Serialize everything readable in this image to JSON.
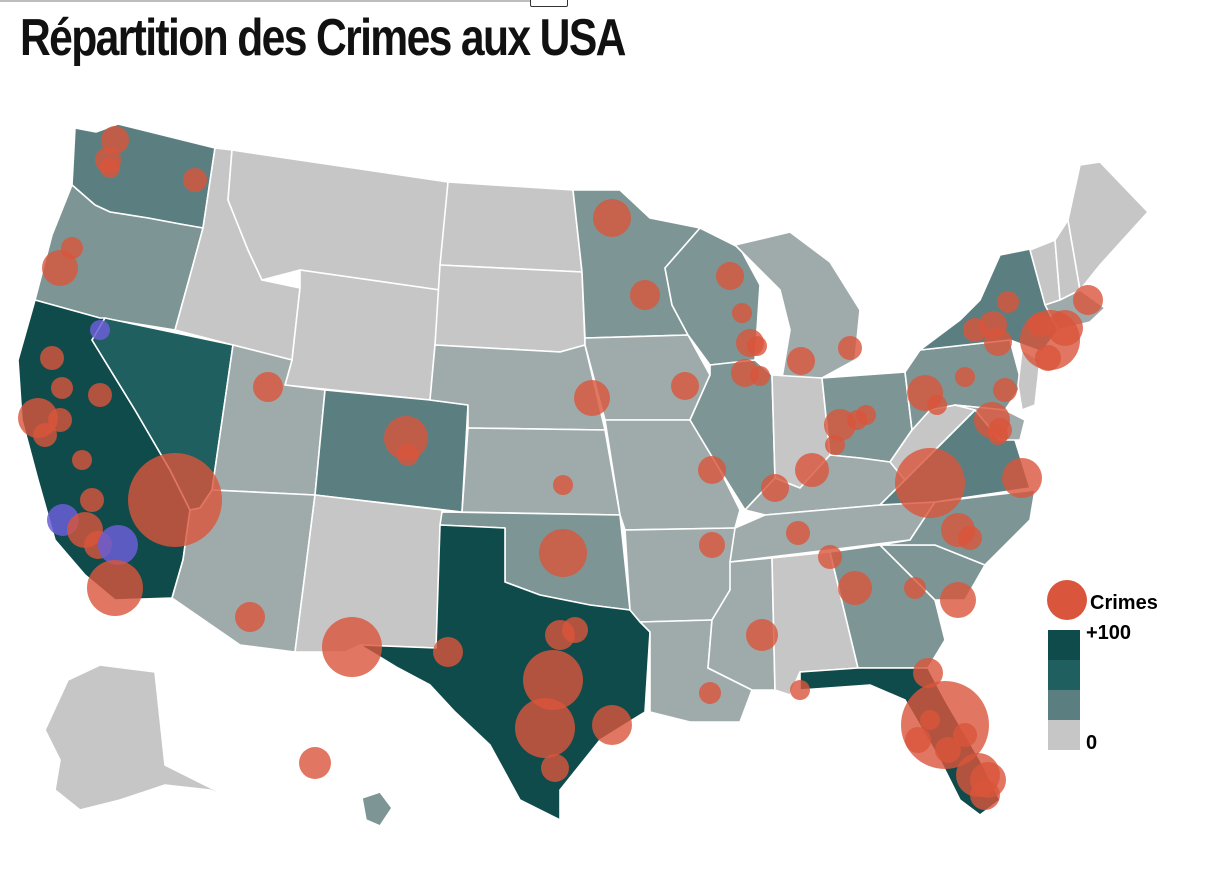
{
  "title": "Répartition des Crimes aux USA",
  "colors": {
    "level0": "#c6c6c6",
    "level1": "#9fabab",
    "level2": "#7e9595",
    "level3": "#5b7f80",
    "level4": "#205f60",
    "level5": "#0f4b4a",
    "bubble": "#d9553b",
    "bubble_alt": "#6a5ed6"
  },
  "legend": {
    "bubble_label": "Crimes",
    "scale_max_label": "+100",
    "scale_min_label": "0",
    "scale_colors": [
      "#0f4b4a",
      "#205f60",
      "#5b7f80",
      "#c6c6c6"
    ]
  },
  "states": [
    {
      "name": "washington",
      "level": 3
    },
    {
      "name": "oregon",
      "level": 2
    },
    {
      "name": "california",
      "level": 5
    },
    {
      "name": "nevada",
      "level": 4
    },
    {
      "name": "idaho",
      "level": 0
    },
    {
      "name": "montana",
      "level": 0
    },
    {
      "name": "wyoming",
      "level": 0
    },
    {
      "name": "utah",
      "level": 1
    },
    {
      "name": "arizona",
      "level": 1
    },
    {
      "name": "colorado",
      "level": 3
    },
    {
      "name": "new-mexico",
      "level": 0
    },
    {
      "name": "north-dakota",
      "level": 0
    },
    {
      "name": "south-dakota",
      "level": 0
    },
    {
      "name": "nebraska",
      "level": 1
    },
    {
      "name": "kansas",
      "level": 1
    },
    {
      "name": "oklahoma",
      "level": 2
    },
    {
      "name": "texas",
      "level": 5
    },
    {
      "name": "minnesota",
      "level": 2
    },
    {
      "name": "iowa",
      "level": 1
    },
    {
      "name": "missouri",
      "level": 1
    },
    {
      "name": "arkansas",
      "level": 1
    },
    {
      "name": "louisiana",
      "level": 1
    },
    {
      "name": "wisconsin",
      "level": 2
    },
    {
      "name": "illinois",
      "level": 2
    },
    {
      "name": "michigan",
      "level": 1
    },
    {
      "name": "indiana",
      "level": 0
    },
    {
      "name": "ohio",
      "level": 2
    },
    {
      "name": "kentucky",
      "level": 1
    },
    {
      "name": "tennessee",
      "level": 1
    },
    {
      "name": "mississippi",
      "level": 1
    },
    {
      "name": "alabama",
      "level": 0
    },
    {
      "name": "georgia",
      "level": 2
    },
    {
      "name": "florida",
      "level": 5
    },
    {
      "name": "south-carolina",
      "level": 2
    },
    {
      "name": "north-carolina",
      "level": 2
    },
    {
      "name": "virginia",
      "level": 3
    },
    {
      "name": "west-virginia",
      "level": 0
    },
    {
      "name": "pennsylvania",
      "level": 2
    },
    {
      "name": "new-york",
      "level": 3
    },
    {
      "name": "maine",
      "level": 0
    },
    {
      "name": "new-hampshire",
      "level": 0
    },
    {
      "name": "vermont",
      "level": 0
    },
    {
      "name": "massachusetts",
      "level": 1
    },
    {
      "name": "new-jersey",
      "level": 0
    },
    {
      "name": "maryland",
      "level": 1
    },
    {
      "name": "alaska",
      "level": 0
    },
    {
      "name": "hawaii",
      "level": 2
    }
  ]
}
